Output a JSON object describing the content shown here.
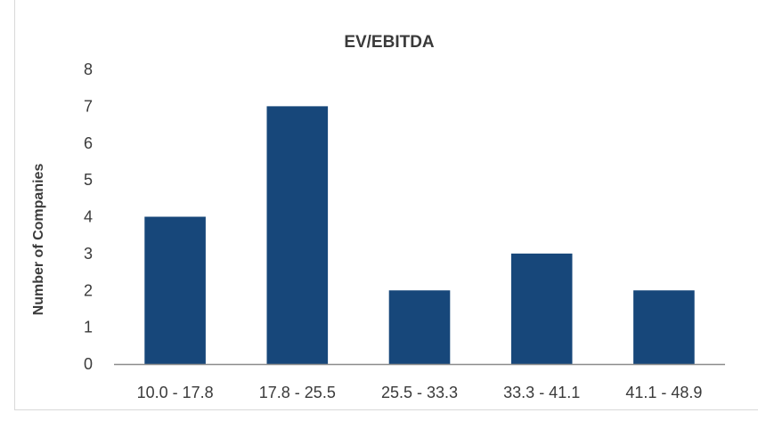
{
  "chart_data": {
    "type": "bar",
    "title": "EV/EBITDA",
    "xlabel": "",
    "ylabel": "Number of Companies",
    "categories": [
      "10.0 - 17.8",
      "17.8 - 25.5",
      "25.5 - 33.3",
      "33.3 - 41.1",
      "41.1 - 48.9"
    ],
    "values": [
      4,
      7,
      2,
      3,
      2
    ],
    "ylim": [
      0,
      8
    ],
    "yticks": [
      0,
      1,
      2,
      3,
      4,
      5,
      6,
      7,
      8
    ],
    "grid": false,
    "bar_color": "#17477a",
    "axis_color": "#8c8c8c",
    "text_color": "#3a3a3a"
  }
}
